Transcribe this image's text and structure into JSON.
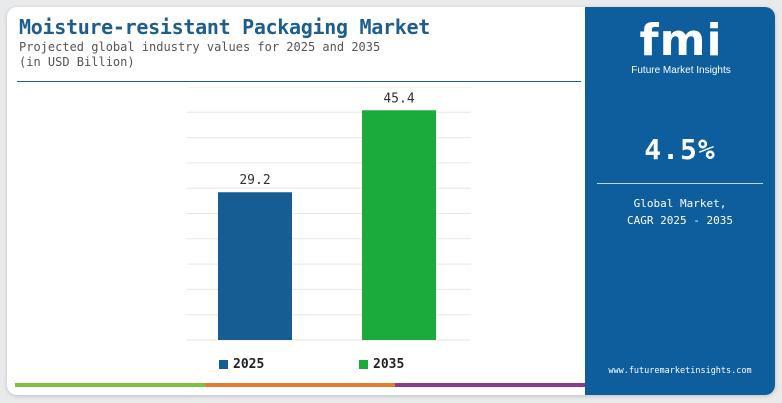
{
  "header": {
    "title": "Moisture-resistant Packaging Market",
    "subtitle_line1": "Projected global industry values for 2025 and 2035",
    "subtitle_line2": "(in USD Billion)"
  },
  "chart_data": {
    "type": "bar",
    "categories": [
      "2025",
      "2035"
    ],
    "values": [
      29.2,
      45.4
    ],
    "value_labels": [
      "29.2",
      "45.4"
    ],
    "colors": [
      "#155d93",
      "#1bab3a"
    ],
    "ylim": [
      0,
      50
    ],
    "grid": true,
    "legend": {
      "placement": "bottom",
      "entries": [
        "2025",
        "2035"
      ]
    }
  },
  "bottom_bar_colors": [
    "#7cc242",
    "#e67c2b",
    "#8b3a8f"
  ],
  "sidebar": {
    "background": "#0e5d9c",
    "logo_mark": "fmi",
    "logo_text": "Future Market Insights",
    "cagr_value": "4.5%",
    "cagr_label_line1": "Global Market,",
    "cagr_label_line2": "CAGR 2025 - 2035",
    "website": "www.futuremarketinsights.com"
  }
}
